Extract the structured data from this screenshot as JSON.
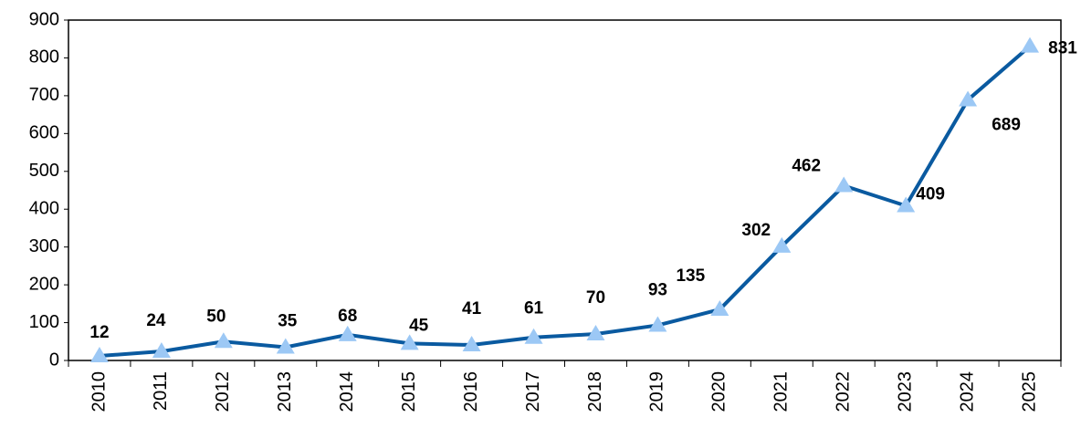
{
  "chart_data": {
    "type": "line",
    "categories": [
      "2010",
      "2011",
      "2012",
      "2013",
      "2014",
      "2015",
      "2016",
      "2017",
      "2018",
      "2019",
      "2020",
      "2021",
      "2022",
      "2023",
      "2024",
      "2025"
    ],
    "series": [
      {
        "color": "#0a5aa0",
        "marker_color": "#9cc8f5",
        "values": [
          12,
          24,
          50,
          35,
          68,
          45,
          41,
          61,
          70,
          93,
          135,
          302,
          462,
          409,
          689,
          831
        ]
      }
    ],
    "ylim": [
      0,
      900
    ],
    "yticks": [
      0,
      100,
      200,
      300,
      400,
      500,
      600,
      700,
      800,
      900
    ],
    "grid": false
  }
}
